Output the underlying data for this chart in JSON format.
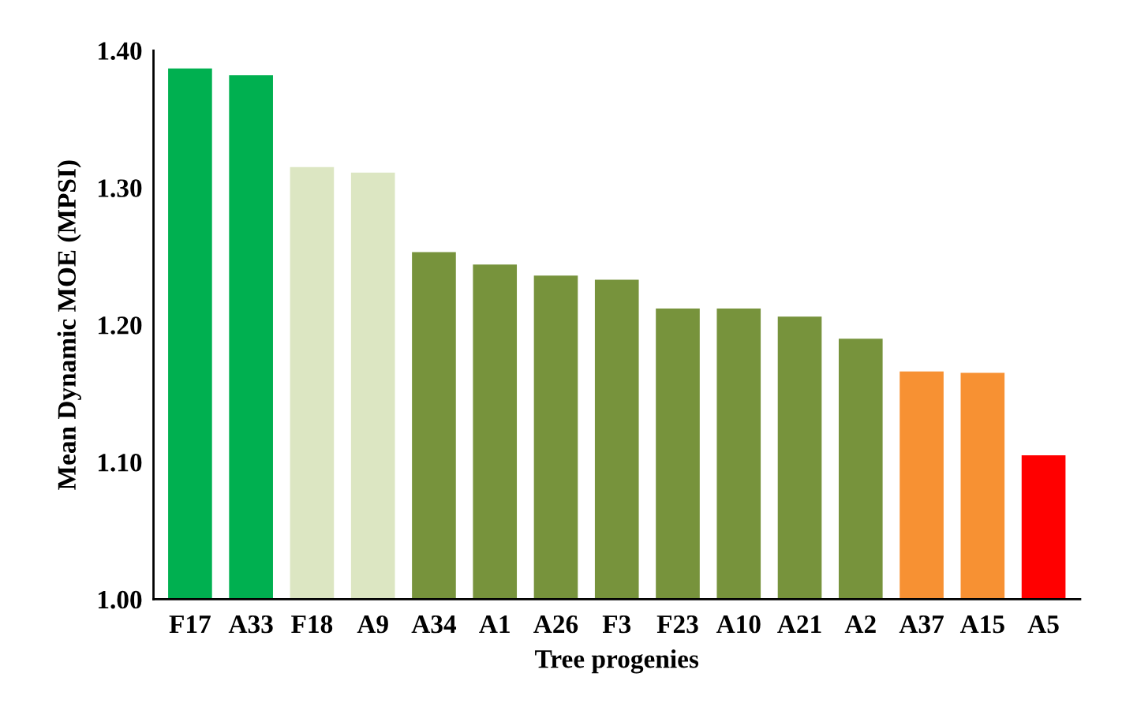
{
  "chart_data": {
    "type": "bar",
    "xlabel": "Tree progenies",
    "ylabel": "Mean Dynamic MOE (MPSI)",
    "categories": [
      "F17",
      "A33",
      "F18",
      "A9",
      "A34",
      "A1",
      "A26",
      "F3",
      "F23",
      "A10",
      "A21",
      "A2",
      "A37",
      "A15",
      "A5"
    ],
    "values": [
      1.387,
      1.382,
      1.315,
      1.311,
      1.253,
      1.244,
      1.236,
      1.233,
      1.212,
      1.212,
      1.206,
      1.19,
      1.166,
      1.165,
      1.105
    ],
    "colors": [
      "#00b050",
      "#00b050",
      "#dce6c2",
      "#dce6c2",
      "#77933c",
      "#77933c",
      "#77933c",
      "#77933c",
      "#77933c",
      "#77933c",
      "#77933c",
      "#77933c",
      "#f79133",
      "#f79133",
      "#ff0000"
    ],
    "ylim": [
      1.0,
      1.4
    ],
    "yticks": [
      {
        "value": 1.0,
        "label": "1.00"
      },
      {
        "value": 1.1,
        "label": "1.10"
      },
      {
        "value": 1.2,
        "label": "1.20"
      },
      {
        "value": 1.3,
        "label": "1.30"
      },
      {
        "value": 1.4,
        "label": "1.40"
      }
    ],
    "grid": false,
    "legend": false
  }
}
